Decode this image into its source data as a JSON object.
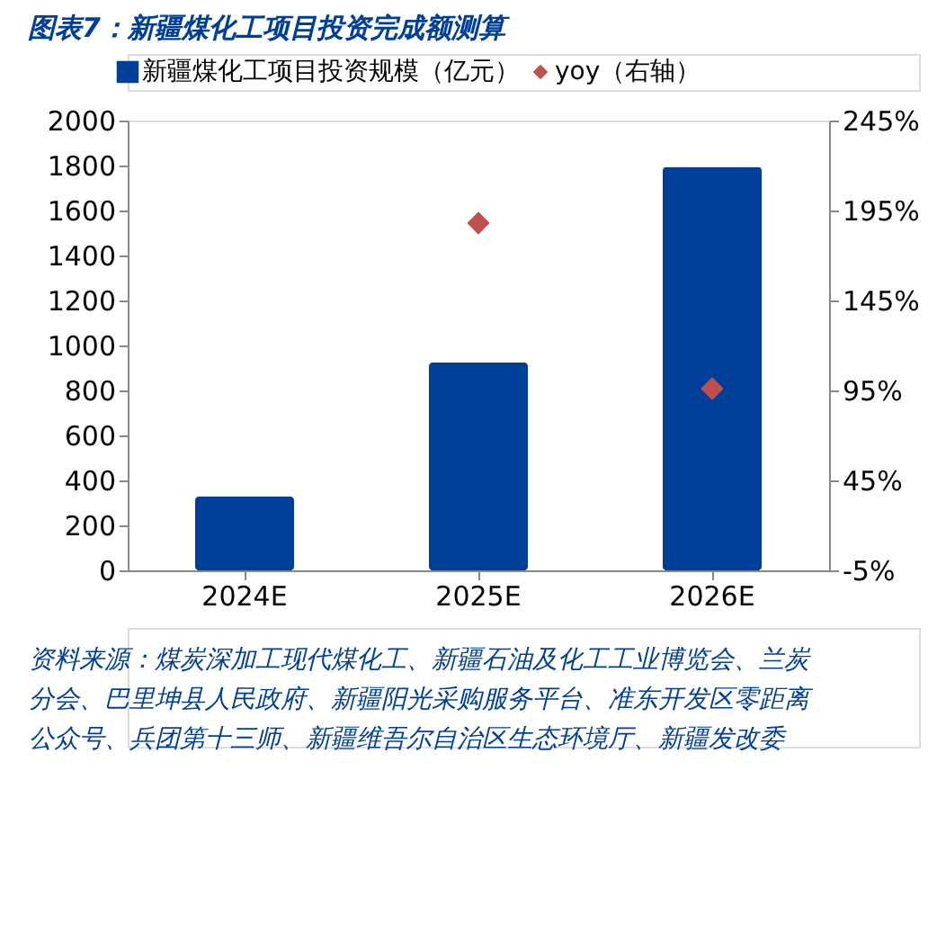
{
  "chart_data": {
    "type": "bar",
    "title": "图表7：新疆煤化工项目投资完成额测算",
    "categories": [
      "2024E",
      "2025E",
      "2026E"
    ],
    "series": [
      {
        "name": "新疆煤化工项目投资规模（亿元）",
        "color": "#003f98",
        "values": [
          328,
          924,
          1794
        ]
      },
      {
        "name": "yoy（右轴）",
        "type": "scatter",
        "axis": "y2",
        "marker": "diamond",
        "color": "#c0504d",
        "values": [
          null,
          188,
          96
        ]
      }
    ],
    "ylim": [
      0,
      2000
    ],
    "yticks": [
      0,
      200,
      400,
      600,
      800,
      1000,
      1200,
      1400,
      1600,
      1800,
      2000
    ],
    "y2lim": [
      -5,
      245
    ],
    "y2ticks": [
      {
        "value": -5,
        "label": "-5%"
      },
      {
        "value": 45,
        "label": "45%"
      },
      {
        "value": 95,
        "label": "95%"
      },
      {
        "value": 145,
        "label": "145%"
      },
      {
        "value": 195,
        "label": "195%"
      },
      {
        "value": 245,
        "label": "245%"
      }
    ],
    "legend": "top",
    "grid": false,
    "annotations": [
      "资料来源：煤炭深加工现代煤化工、新疆石油及化工工业博览会、兰炭分会、巴里坤县人民政府、新疆阳光采购服务平台、准东开发区零距离公众号、兵团第十三师、新疆维吾尔自治区生态环境厅、新疆发改委"
    ]
  }
}
